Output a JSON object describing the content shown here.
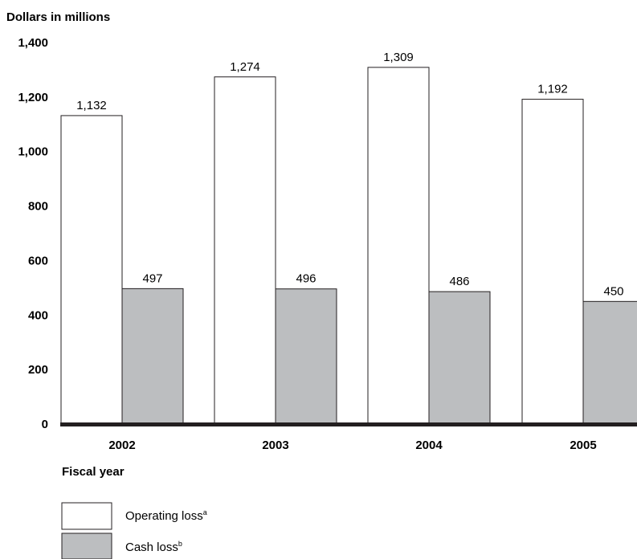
{
  "chart_data": {
    "type": "bar",
    "ylabel": "Dollars in millions",
    "xlabel": "Fiscal year",
    "ylim": [
      0,
      1400
    ],
    "yticks": [
      "0",
      "200",
      "400",
      "600",
      "800",
      "1,000",
      "1,200",
      "1,400"
    ],
    "ytick_values": [
      0,
      200,
      400,
      600,
      800,
      1000,
      1200,
      1400
    ],
    "grid": false,
    "legend_position": "bottom-left",
    "categories": [
      "2002",
      "2003",
      "2004",
      "2005"
    ],
    "series": [
      {
        "name": "Operating loss",
        "superscript": "a",
        "values": [
          1132,
          1274,
          1309,
          1192
        ],
        "labels": [
          "1,132",
          "1,274",
          "1,309",
          "1,192"
        ],
        "fill": "#ffffff"
      },
      {
        "name": "Cash loss",
        "superscript": "b",
        "values": [
          497,
          496,
          486,
          450
        ],
        "labels": [
          "497",
          "496",
          "486",
          "450"
        ],
        "fill": "#bcbec0"
      }
    ]
  }
}
